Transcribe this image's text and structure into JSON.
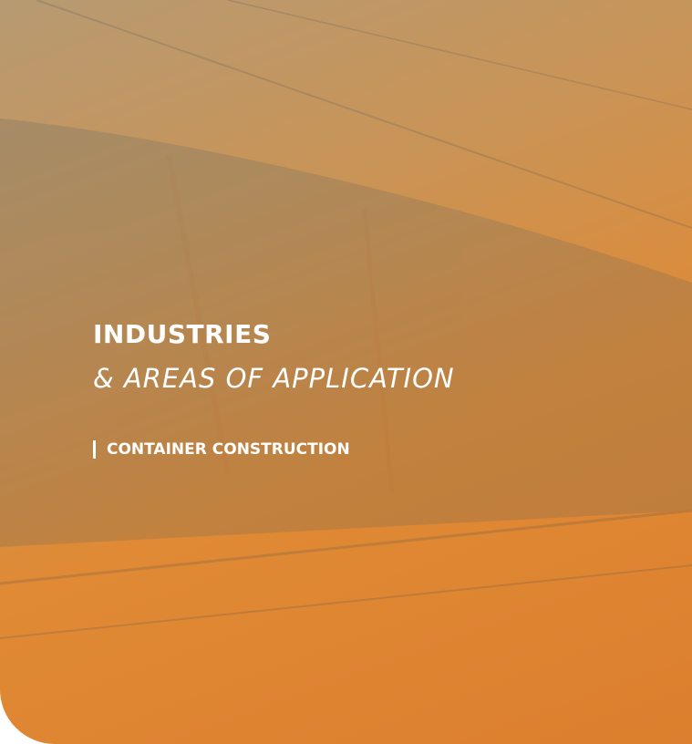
{
  "hero": {
    "title": "INDUSTRIES",
    "subtitle": "& AREAS OF APPLICATION",
    "category": "CONTAINER CONSTRUCTION"
  }
}
